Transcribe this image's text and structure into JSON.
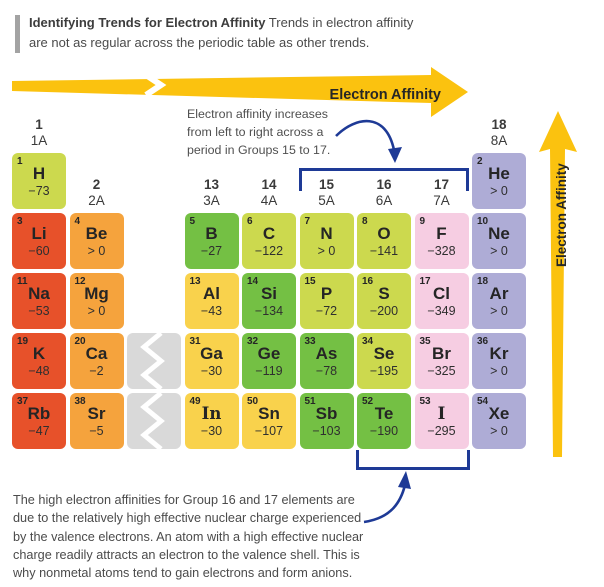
{
  "header": {
    "line1_bold": "Identifying Trends for Electron Affinity",
    "line1_rest": " Trends in electron affinity",
    "line2": "are not as regular across the periodic table as other trends."
  },
  "trend_arrows": {
    "horizontal_label": "Electron Affinity",
    "vertical_label": "Electron Affinity"
  },
  "annotations": {
    "top": {
      "lines": [
        "Electron affinity increases",
        "from left to right across a",
        "period in Groups 15 to 17."
      ]
    },
    "bottom": {
      "lines": [
        "The high electron affinities for Group 16 and 17 elements are",
        "due to the relatively high effective nuclear charge experienced",
        "by the valence electrons. An atom with a high effective nuclear",
        "charge readily attracts an electron to the valence shell. This is",
        "why nonmetal atoms tend to gain electrons and form anions."
      ]
    }
  },
  "colors": {
    "red": "#e7512a",
    "orange": "#f5a33d",
    "yellow": "#f9d24c",
    "green": "#74c044",
    "yellowgreen": "#ccd94e",
    "pink": "#f6cde2",
    "lavender": "#aeacd6",
    "gray": "#d9d9d9",
    "gold": "#fbc20f",
    "navy": "#1e3a96"
  },
  "table": {
    "group_headers": [
      {
        "num": "1",
        "label": "1A",
        "col": 0,
        "level": "high"
      },
      {
        "num": "2",
        "label": "2A",
        "col": 1,
        "level": "low"
      },
      {
        "num": "13",
        "label": "3A",
        "col": 3,
        "level": "low"
      },
      {
        "num": "14",
        "label": "4A",
        "col": 4,
        "level": "low"
      },
      {
        "num": "15",
        "label": "5A",
        "col": 5,
        "level": "low"
      },
      {
        "num": "16",
        "label": "6A",
        "col": 6,
        "level": "low"
      },
      {
        "num": "17",
        "label": "7A",
        "col": 7,
        "level": "low"
      },
      {
        "num": "18",
        "label": "8A",
        "col": 8,
        "level": "high"
      }
    ],
    "elements": [
      {
        "num": "1",
        "sym": "H",
        "val": "−73",
        "color": "yellowgreen",
        "row": 0,
        "col": 0
      },
      {
        "num": "2",
        "sym": "He",
        "val": "> 0",
        "color": "lavender",
        "row": 0,
        "col": 8
      },
      {
        "num": "3",
        "sym": "Li",
        "val": "−60",
        "color": "red",
        "row": 1,
        "col": 0
      },
      {
        "num": "4",
        "sym": "Be",
        "val": "> 0",
        "color": "orange",
        "row": 1,
        "col": 1
      },
      {
        "num": "5",
        "sym": "B",
        "val": "−27",
        "color": "green",
        "row": 1,
        "col": 3
      },
      {
        "num": "6",
        "sym": "C",
        "val": "−122",
        "color": "yellowgreen",
        "row": 1,
        "col": 4
      },
      {
        "num": "7",
        "sym": "N",
        "val": "> 0",
        "color": "yellowgreen",
        "row": 1,
        "col": 5
      },
      {
        "num": "8",
        "sym": "O",
        "val": "−141",
        "color": "yellowgreen",
        "row": 1,
        "col": 6
      },
      {
        "num": "9",
        "sym": "F",
        "val": "−328",
        "color": "pink",
        "row": 1,
        "col": 7
      },
      {
        "num": "10",
        "sym": "Ne",
        "val": "> 0",
        "color": "lavender",
        "row": 1,
        "col": 8
      },
      {
        "num": "11",
        "sym": "Na",
        "val": "−53",
        "color": "red",
        "row": 2,
        "col": 0
      },
      {
        "num": "12",
        "sym": "Mg",
        "val": "> 0",
        "color": "orange",
        "row": 2,
        "col": 1
      },
      {
        "num": "13",
        "sym": "Al",
        "val": "−43",
        "color": "yellow",
        "row": 2,
        "col": 3
      },
      {
        "num": "14",
        "sym": "Si",
        "val": "−134",
        "color": "green",
        "row": 2,
        "col": 4
      },
      {
        "num": "15",
        "sym": "P",
        "val": "−72",
        "color": "yellowgreen",
        "row": 2,
        "col": 5
      },
      {
        "num": "16",
        "sym": "S",
        "val": "−200",
        "color": "yellowgreen",
        "row": 2,
        "col": 6
      },
      {
        "num": "17",
        "sym": "Cl",
        "val": "−349",
        "color": "pink",
        "row": 2,
        "col": 7
      },
      {
        "num": "18",
        "sym": "Ar",
        "val": "> 0",
        "color": "lavender",
        "row": 2,
        "col": 8
      },
      {
        "num": "19",
        "sym": "K",
        "val": "−48",
        "color": "red",
        "row": 3,
        "col": 0
      },
      {
        "num": "20",
        "sym": "Ca",
        "val": "−2",
        "color": "orange",
        "row": 3,
        "col": 1
      },
      {
        "num": "31",
        "sym": "Ga",
        "val": "−30",
        "color": "yellow",
        "row": 3,
        "col": 3
      },
      {
        "num": "32",
        "sym": "Ge",
        "val": "−119",
        "color": "green",
        "row": 3,
        "col": 4
      },
      {
        "num": "33",
        "sym": "As",
        "val": "−78",
        "color": "green",
        "row": 3,
        "col": 5
      },
      {
        "num": "34",
        "sym": "Se",
        "val": "−195",
        "color": "yellowgreen",
        "row": 3,
        "col": 6
      },
      {
        "num": "35",
        "sym": "Br",
        "val": "−325",
        "color": "pink",
        "row": 3,
        "col": 7
      },
      {
        "num": "36",
        "sym": "Kr",
        "val": "> 0",
        "color": "lavender",
        "row": 3,
        "col": 8
      },
      {
        "num": "37",
        "sym": "Rb",
        "val": "−47",
        "color": "red",
        "row": 4,
        "col": 0
      },
      {
        "num": "38",
        "sym": "Sr",
        "val": "−5",
        "color": "orange",
        "row": 4,
        "col": 1
      },
      {
        "num": "49",
        "sym": "In",
        "val": "−30",
        "color": "yellow",
        "row": 4,
        "col": 3,
        "serif": true
      },
      {
        "num": "50",
        "sym": "Sn",
        "val": "−107",
        "color": "yellow",
        "row": 4,
        "col": 4
      },
      {
        "num": "51",
        "sym": "Sb",
        "val": "−103",
        "color": "green",
        "row": 4,
        "col": 5
      },
      {
        "num": "52",
        "sym": "Te",
        "val": "−190",
        "color": "green",
        "row": 4,
        "col": 6
      },
      {
        "num": "53",
        "sym": "I",
        "val": "−295",
        "color": "pink",
        "row": 4,
        "col": 7,
        "serif": true
      },
      {
        "num": "54",
        "sym": "Xe",
        "val": "> 0",
        "color": "lavender",
        "row": 4,
        "col": 8
      }
    ],
    "placeholders": [
      {
        "row": 3,
        "col": 2
      },
      {
        "row": 4,
        "col": 2
      }
    ]
  }
}
